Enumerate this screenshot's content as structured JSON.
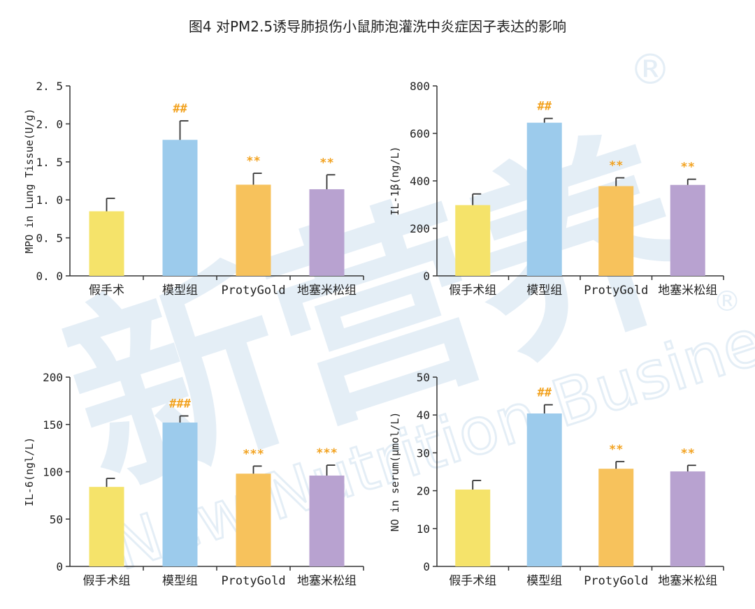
{
  "figure_title": "图4 对PM2.5诱导肺损伤小鼠肺泡灌洗中炎症因子表达的影响",
  "watermark": {
    "text": "New Nutrition Business",
    "logo_text": "新营养",
    "registered_mark": "®"
  },
  "colors": {
    "bars": [
      "#f5e36a",
      "#9ccbec",
      "#f7c25c",
      "#b8a2d0"
    ],
    "sig": "#f2a21f",
    "axis": "#333333",
    "error": "#333333"
  },
  "chart_data": [
    {
      "type": "bar",
      "title": "",
      "xlabel": "",
      "ylabel": "MPO in Lung Tissue(U/g)",
      "categories": [
        "假手术",
        "模型组",
        "ProtyGold",
        "地塞米松组"
      ],
      "values": [
        0.85,
        1.79,
        1.2,
        1.14
      ],
      "errors": [
        0.17,
        0.25,
        0.15,
        0.19
      ],
      "sig_labels": [
        "",
        "##",
        "**",
        "**"
      ],
      "ylim": [
        0,
        2.5
      ],
      "yticks": [
        0,
        0.5,
        1.0,
        1.5,
        2.0,
        2.5
      ],
      "ytick_labels": [
        "0. 0",
        "0. 5",
        "1. 0",
        "1. 5",
        "2. 0",
        "2. 5"
      ],
      "grid": false
    },
    {
      "type": "bar",
      "title": "",
      "xlabel": "",
      "ylabel": "IL-1β(ng/L)",
      "categories": [
        "假手术组",
        "模型组",
        "ProtyGold",
        "地塞米松组"
      ],
      "values": [
        298,
        645,
        378,
        383
      ],
      "errors": [
        47,
        18,
        35,
        24
      ],
      "sig_labels": [
        "",
        "##",
        "**",
        "**"
      ],
      "ylim": [
        0,
        800
      ],
      "yticks": [
        0,
        200,
        400,
        600,
        800
      ],
      "ytick_labels": [
        "0",
        "200",
        "400",
        "600",
        "800"
      ],
      "grid": false
    },
    {
      "type": "bar",
      "title": "",
      "xlabel": "",
      "ylabel": "IL-6(ngl/L)",
      "categories": [
        "假手术组",
        "模型组",
        "ProtyGold",
        "地塞米松组"
      ],
      "values": [
        84,
        152,
        98,
        96
      ],
      "errors": [
        9,
        7,
        8,
        11
      ],
      "sig_labels": [
        "",
        "###",
        "***",
        "***"
      ],
      "ylim": [
        0,
        200
      ],
      "yticks": [
        0,
        50,
        100,
        150,
        200
      ],
      "ytick_labels": [
        "0",
        "50",
        "100",
        "150",
        "200"
      ],
      "grid": false
    },
    {
      "type": "bar",
      "title": "",
      "xlabel": "",
      "ylabel": "NO in serum(μmol/L)",
      "categories": [
        "假手术组",
        "模型组",
        "ProtyGold",
        "地塞米松组"
      ],
      "values": [
        20.3,
        40.4,
        25.8,
        25.1
      ],
      "errors": [
        2.4,
        2.3,
        1.9,
        1.6
      ],
      "sig_labels": [
        "",
        "##",
        "**",
        "**"
      ],
      "ylim": [
        0,
        50
      ],
      "yticks": [
        0,
        10,
        20,
        30,
        40,
        50
      ],
      "ytick_labels": [
        "0",
        "10",
        "20",
        "30",
        "40",
        "50"
      ],
      "grid": false
    }
  ]
}
